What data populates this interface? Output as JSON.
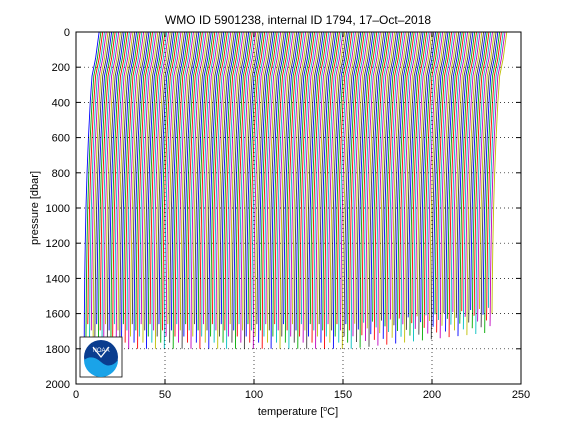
{
  "chart_data": {
    "type": "line",
    "title": "WMO ID 5901238, internal ID 1794, 17–Oct–2018",
    "xlabel": "temperature [",
    "xlabel_unit": "C",
    "xlabel_suffix": "]",
    "ylabel": "pressure [dbar]",
    "xlim": [
      0,
      250
    ],
    "ylim": [
      0,
      2000
    ],
    "y_reversed": true,
    "x_ticks": [
      "0",
      "50",
      "100",
      "150",
      "200",
      "250"
    ],
    "y_ticks": [
      "0",
      "200",
      "400",
      "600",
      "800",
      "1000",
      "1200",
      "1400",
      "1600",
      "1800",
      "2000"
    ],
    "grid": true,
    "profile_count": 230,
    "profile_offset_step": 1,
    "series_colors": [
      "#0000ff",
      "#00aa00",
      "#ff0000",
      "#00bfbf",
      "#bf00bf",
      "#bfbf00",
      "#404040"
    ],
    "profile_shape": {
      "pressure": [
        0,
        150,
        250,
        400,
        600,
        800,
        1000,
        1200,
        1400,
        1600,
        1800
      ],
      "temperature_delta": [
        0,
        -2,
        -4,
        -5,
        -6,
        -6.8,
        -7.4,
        -7.8,
        -8.1,
        -8.3,
        -8.4
      ]
    },
    "logo": {
      "text": "NOAA",
      "colors": [
        "#0a3d8f",
        "#1aa3e8",
        "#ffffff"
      ]
    }
  }
}
